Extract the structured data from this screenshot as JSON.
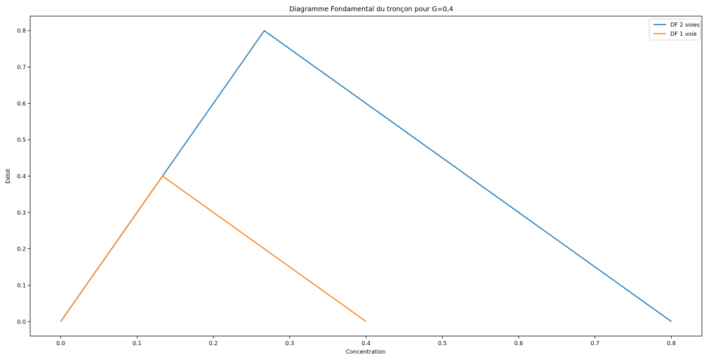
{
  "chart_data": {
    "type": "line",
    "title": "Diagramme Fondamental du tronçon pour G=0,4",
    "xlabel": "Concentration",
    "ylabel": "Débit",
    "xlim": [
      -0.04,
      0.84
    ],
    "ylim": [
      -0.04,
      0.84
    ],
    "xticks": [
      0.0,
      0.1,
      0.2,
      0.3,
      0.4,
      0.5,
      0.6,
      0.7,
      0.8
    ],
    "xtick_labels": [
      "0.0",
      "0.1",
      "0.2",
      "0.3",
      "0.4",
      "0.5",
      "0.6",
      "0.7",
      "0.8"
    ],
    "yticks": [
      0.0,
      0.1,
      0.2,
      0.3,
      0.4,
      0.5,
      0.6,
      0.7,
      0.8
    ],
    "ytick_labels": [
      "0.0",
      "0.1",
      "0.2",
      "0.3",
      "0.4",
      "0.5",
      "0.6",
      "0.7",
      "0.8"
    ],
    "grid": false,
    "legend_position": "top-right",
    "series": [
      {
        "name": "DF 2 voies",
        "color": "#1f77b4",
        "x": [
          0.0,
          0.2667,
          0.8
        ],
        "y": [
          0.0,
          0.8,
          0.0
        ]
      },
      {
        "name": "DF 1 voie",
        "color": "#ff7f0e",
        "x": [
          0.0,
          0.1333,
          0.4
        ],
        "y": [
          0.0,
          0.4,
          0.0
        ]
      }
    ]
  }
}
